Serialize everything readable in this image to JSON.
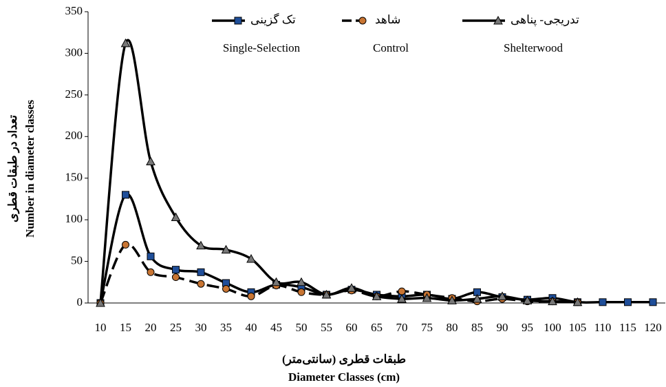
{
  "chart_data": {
    "type": "line",
    "x_label": "طبقات قطری (سانتی‌متر)",
    "x_label_en": "Diameter Classes (cm)",
    "y_label": "تعداد در طبقات قطری",
    "y_label_en": "Number in diameter classes",
    "categories": [
      10,
      15,
      20,
      25,
      30,
      35,
      40,
      45,
      50,
      55,
      60,
      65,
      70,
      75,
      80,
      85,
      90,
      95,
      100,
      105,
      110,
      115,
      120
    ],
    "series": [
      {
        "name": "تک گزینی",
        "name_en": "Single-Selection",
        "color": "#1f4e99",
        "marker": "square",
        "dash": false,
        "values": [
          0,
          130,
          56,
          40,
          37,
          24,
          13,
          22,
          19,
          10,
          16,
          10,
          8,
          10,
          5,
          13,
          7,
          4,
          6,
          1,
          1,
          1,
          1
        ]
      },
      {
        "name": "شاهد",
        "name_en": "Control",
        "color": "#c87533",
        "marker": "circle",
        "dash": true,
        "values": [
          0,
          70,
          37,
          31,
          23,
          17,
          8,
          21,
          13,
          10,
          15,
          8,
          14,
          10,
          6,
          2,
          5,
          2,
          2,
          1,
          null,
          null,
          null
        ]
      },
      {
        "name": "تدریجی- پناهی",
        "name_en": "Shelterwood",
        "color": "#777777",
        "marker": "triangle",
        "dash": false,
        "values": [
          0,
          312,
          170,
          103,
          69,
          64,
          53,
          25,
          25,
          10,
          18,
          8,
          5,
          6,
          3,
          5,
          8,
          3,
          2,
          1,
          null,
          null,
          null
        ]
      }
    ],
    "ylim": [
      0,
      350
    ],
    "yticks": [
      0,
      50,
      100,
      150,
      200,
      250,
      300,
      350
    ]
  }
}
